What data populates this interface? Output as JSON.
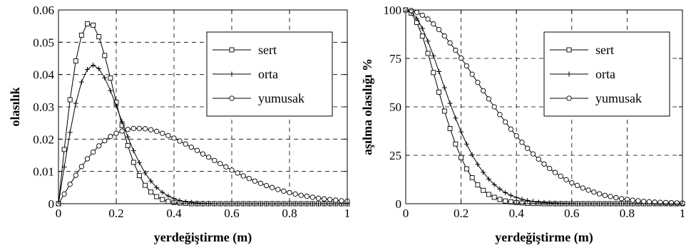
{
  "chart_data": [
    {
      "type": "line",
      "title": "",
      "xlabel": "yerdeğiştirme (m)",
      "ylabel": "olasılık",
      "xlim": [
        0,
        1
      ],
      "ylim": [
        0,
        0.06
      ],
      "xticks": [
        0,
        0.2,
        0.4,
        0.6,
        0.8,
        1
      ],
      "xtick_labels": [
        "0",
        "0.2",
        "0.4",
        "0.6",
        "0.8",
        "1"
      ],
      "yticks": [
        0,
        0.01,
        0.02,
        0.03,
        0.04,
        0.05,
        0.06
      ],
      "ytick_labels": [
        "0",
        "0.01",
        "0.02",
        "0.03",
        "0.04",
        "0.05",
        "0.06"
      ],
      "grid": true,
      "grid_style": "dashed",
      "legend_position": "top-right",
      "x": [
        0,
        0.02,
        0.04,
        0.06,
        0.08,
        0.1,
        0.12,
        0.14,
        0.16,
        0.18,
        0.2,
        0.22,
        0.24,
        0.26,
        0.28,
        0.3,
        0.32,
        0.34,
        0.36,
        0.38,
        0.4,
        0.42,
        0.44,
        0.46,
        0.48,
        0.5,
        0.52,
        0.54,
        0.56,
        0.58,
        0.6,
        0.62,
        0.64,
        0.66,
        0.68,
        0.7,
        0.72,
        0.74,
        0.76,
        0.78,
        0.8,
        0.82,
        0.84,
        0.86,
        0.88,
        0.9,
        0.92,
        0.94,
        0.96,
        0.98,
        1
      ],
      "series": [
        {
          "name": "sert",
          "marker": "square",
          "values": [
            0,
            0.0168,
            0.0322,
            0.0442,
            0.0522,
            0.0557,
            0.0553,
            0.0517,
            0.0459,
            0.0389,
            0.0314,
            0.0243,
            0.018,
            0.0128,
            0.0087,
            0.0057,
            0.0036,
            0.0022,
            0.0013,
            0.0007,
            0.0004,
            0.0002,
            0.0001,
            0,
            0,
            0,
            0,
            0,
            0,
            0,
            0,
            0,
            0,
            0,
            0,
            0,
            0,
            0,
            0,
            0,
            0,
            0,
            0,
            0,
            0,
            0,
            0,
            0,
            0,
            0,
            0
          ]
        },
        {
          "name": "orta",
          "marker": "plus",
          "values": [
            0,
            0.0114,
            0.0221,
            0.0311,
            0.0377,
            0.0416,
            0.0429,
            0.0418,
            0.039,
            0.035,
            0.0303,
            0.0254,
            0.0207,
            0.0164,
            0.0127,
            0.0095,
            0.007,
            0.005,
            0.0035,
            0.0024,
            0.0016,
            0.001,
            0.0006,
            0.0004,
            0.0002,
            0.0001,
            0.0001,
            0,
            0,
            0,
            0,
            0,
            0,
            0,
            0,
            0,
            0,
            0,
            0,
            0,
            0,
            0,
            0,
            0,
            0,
            0,
            0,
            0,
            0,
            0,
            0
          ]
        },
        {
          "name": "yumusak",
          "marker": "circle",
          "values": [
            0,
            0.003,
            0.006,
            0.0088,
            0.0115,
            0.0139,
            0.016,
            0.0179,
            0.0195,
            0.0208,
            0.0218,
            0.0225,
            0.023,
            0.0233,
            0.0233,
            0.0232,
            0.0229,
            0.0224,
            0.0218,
            0.0211,
            0.0203,
            0.0194,
            0.0185,
            0.0175,
            0.0165,
            0.0154,
            0.0144,
            0.0134,
            0.0124,
            0.0114,
            0.0104,
            0.0095,
            0.0086,
            0.0078,
            0.007,
            0.0063,
            0.0056,
            0.005,
            0.0044,
            0.0039,
            0.0034,
            0.003,
            0.0026,
            0.0023,
            0.002,
            0.0017,
            0.0015,
            0.0013,
            0.0011,
            0.0009,
            0.0008
          ]
        }
      ]
    },
    {
      "type": "line",
      "title": "",
      "xlabel": "yerdeğiştirme (m)",
      "ylabel": "aşılma olasılığı %",
      "xlim": [
        0,
        1
      ],
      "ylim": [
        0,
        100
      ],
      "xticks": [
        0,
        0.2,
        0.4,
        0.6,
        0.8,
        1
      ],
      "xtick_labels": [
        "0",
        "0.2",
        "0.4",
        "0.6",
        "0.8",
        "1"
      ],
      "yticks": [
        0,
        25,
        50,
        75,
        100
      ],
      "ytick_labels": [
        "0",
        "25",
        "50",
        "75",
        "100"
      ],
      "grid": true,
      "grid_style": "dashed",
      "legend_position": "top-right",
      "x": [
        0,
        0.02,
        0.04,
        0.06,
        0.08,
        0.1,
        0.12,
        0.14,
        0.16,
        0.18,
        0.2,
        0.22,
        0.24,
        0.26,
        0.28,
        0.3,
        0.32,
        0.34,
        0.36,
        0.38,
        0.4,
        0.42,
        0.44,
        0.46,
        0.48,
        0.5,
        0.52,
        0.54,
        0.56,
        0.58,
        0.6,
        0.62,
        0.64,
        0.66,
        0.68,
        0.7,
        0.72,
        0.74,
        0.76,
        0.78,
        0.8,
        0.82,
        0.84,
        0.86,
        0.88,
        0.9,
        0.92,
        0.94,
        0.96,
        0.98,
        1
      ],
      "series": [
        {
          "name": "sert",
          "marker": "square",
          "values": [
            100,
            98.3,
            93.6,
            86.5,
            77.6,
            67.7,
            57.6,
            47.8,
            38.8,
            30.8,
            23.8,
            18,
            13.4,
            9.7,
            6.9,
            4.8,
            3.3,
            2.2,
            1.4,
            0.9,
            0.6,
            0.4,
            0.2,
            0.1,
            0.1,
            0,
            0,
            0,
            0,
            0,
            0,
            0,
            0,
            0,
            0,
            0,
            0,
            0,
            0,
            0,
            0,
            0,
            0,
            0,
            0,
            0,
            0,
            0,
            0,
            0,
            0
          ]
        },
        {
          "name": "orta",
          "marker": "plus",
          "values": [
            100,
            98.9,
            95.6,
            90.5,
            83.9,
            76.3,
            68.2,
            59.9,
            51.8,
            44.2,
            37.1,
            30.8,
            25.2,
            20.3,
            16.2,
            12.7,
            9.9,
            7.6,
            5.7,
            4.3,
            3.2,
            2.3,
            1.7,
            1.2,
            0.8,
            0.6,
            0.4,
            0.3,
            0.2,
            0.1,
            0.1,
            0,
            0,
            0,
            0,
            0,
            0,
            0,
            0,
            0,
            0,
            0,
            0,
            0,
            0,
            0,
            0,
            0,
            0,
            0,
            0
          ]
        },
        {
          "name": "yumusak",
          "marker": "circle",
          "values": [
            100,
            99.7,
            98.8,
            97.3,
            95.3,
            92.8,
            89.9,
            86.6,
            83,
            79.2,
            75.2,
            71.1,
            66.8,
            62.6,
            58.3,
            54.1,
            50,
            46,
            42.2,
            38.5,
            35,
            31.7,
            28.6,
            25.7,
            23,
            20.5,
            18.2,
            16.1,
            14.2,
            12.4,
            10.8,
            9.4,
            8.1,
            7,
            6,
            5.1,
            4.3,
            3.7,
            3.1,
            2.6,
            2.2,
            1.8,
            1.5,
            1.2,
            1,
            0.8,
            0.7,
            0.6,
            0.5,
            0.4,
            0.3
          ]
        }
      ]
    }
  ]
}
